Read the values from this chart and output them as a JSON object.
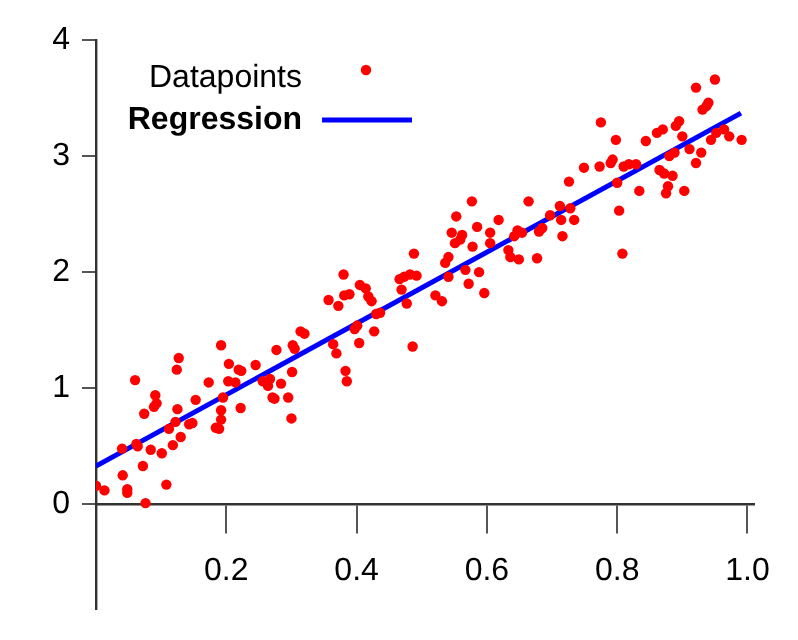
{
  "chart_data": {
    "type": "scatter",
    "xlim": [
      0,
      1.01
    ],
    "ylim": [
      -0.9,
      4
    ],
    "xticks": [
      0.2,
      0.4,
      0.6,
      0.8,
      {
        "value": 1,
        "label": "1.0"
      }
    ],
    "yticks": [
      0,
      1,
      2,
      3,
      4
    ],
    "grid": false,
    "legend": "top left",
    "series": [
      {
        "name": "Datapoints",
        "type": "scatter",
        "marker": "circle",
        "color": "#ff0000",
        "x": [
          0.0,
          0.013,
          0.041,
          0.048,
          0.048,
          0.04,
          0.062,
          0.064,
          0.06,
          0.074,
          0.072,
          0.076,
          0.084,
          0.091,
          0.089,
          0.093,
          0.101,
          0.108,
          0.112,
          0.118,
          0.122,
          0.125,
          0.127,
          0.124,
          0.13,
          0.143,
          0.148,
          0.153,
          0.173,
          0.184,
          0.189,
          0.192,
          0.192,
          0.192,
          0.195,
          0.203,
          0.204,
          0.214,
          0.219,
          0.223,
          0.222,
          0.245,
          0.256,
          0.264,
          0.267,
          0.271,
          0.274,
          0.277,
          0.284,
          0.295,
          0.3,
          0.301,
          0.305,
          0.302,
          0.314,
          0.32,
          0.357,
          0.364,
          0.369,
          0.372,
          0.38,
          0.381,
          0.383,
          0.385,
          0.389,
          0.397,
          0.401,
          0.404,
          0.405,
          0.414,
          0.418,
          0.423,
          0.427,
          0.43,
          0.436,
          0.466,
          0.469,
          0.473,
          0.477,
          0.482,
          0.488,
          0.486,
          0.492,
          0.521,
          0.531,
          0.536,
          0.541,
          0.546,
          0.541,
          0.553,
          0.551,
          0.559,
          0.562,
          0.567,
          0.572,
          0.577,
          0.578,
          0.585,
          0.588,
          0.596,
          0.605,
          0.605,
          0.618,
          0.633,
          0.636,
          0.642,
          0.647,
          0.649,
          0.654,
          0.664,
          0.677,
          0.68,
          0.685,
          0.697,
          0.712,
          0.714,
          0.716,
          0.726,
          0.728,
          0.734,
          0.749,
          0.773,
          0.775,
          0.79,
          0.793,
          0.798,
          0.8,
          0.803,
          0.808,
          0.81,
          0.818,
          0.829,
          0.834,
          0.844,
          0.861,
          0.865,
          0.87,
          0.872,
          0.875,
          0.878,
          0.88,
          0.885,
          0.888,
          0.89,
          0.895,
          0.9,
          0.903,
          0.911,
          0.921,
          0.921,
          0.929,
          0.931,
          0.937,
          0.94,
          0.944,
          0.95,
          0.952,
          0.964,
          0.972,
          0.991
        ],
        "values": [
          0.16,
          0.12,
          0.25,
          0.13,
          0.1,
          0.48,
          0.52,
          0.5,
          1.07,
          0.78,
          0.33,
          0.01,
          0.47,
          0.94,
          0.84,
          0.87,
          0.44,
          0.17,
          0.65,
          0.51,
          0.71,
          0.82,
          1.26,
          1.16,
          0.58,
          0.69,
          0.7,
          0.9,
          1.05,
          0.66,
          0.65,
          0.81,
          0.73,
          1.37,
          0.92,
          1.06,
          1.21,
          1.05,
          1.16,
          1.15,
          0.83,
          1.2,
          1.06,
          1.02,
          1.08,
          0.92,
          0.91,
          1.33,
          1.04,
          0.92,
          0.74,
          1.14,
          1.34,
          1.37,
          1.49,
          1.47,
          1.76,
          1.38,
          1.3,
          1.71,
          1.98,
          1.8,
          1.15,
          1.06,
          1.81,
          1.51,
          1.54,
          1.39,
          1.89,
          1.86,
          1.79,
          1.75,
          1.49,
          1.64,
          1.65,
          1.94,
          1.85,
          1.96,
          1.73,
          1.98,
          2.16,
          1.36,
          1.97,
          1.8,
          1.75,
          2.08,
          2.13,
          2.34,
          1.96,
          2.48,
          2.25,
          2.28,
          2.32,
          2.02,
          1.9,
          2.61,
          2.22,
          2.39,
          2.0,
          1.82,
          2.34,
          2.25,
          2.45,
          2.19,
          2.13,
          2.31,
          2.36,
          2.11,
          2.34,
          2.61,
          2.12,
          2.35,
          2.38,
          2.49,
          2.57,
          2.45,
          2.31,
          2.78,
          2.55,
          2.45,
          2.9,
          2.91,
          3.29,
          2.94,
          2.97,
          3.14,
          2.77,
          2.53,
          2.16,
          2.91,
          2.93,
          2.93,
          2.7,
          3.13,
          3.2,
          2.88,
          3.23,
          2.85,
          2.68,
          2.74,
          3.0,
          2.83,
          3.03,
          3.26,
          3.3,
          3.17,
          2.7,
          3.06,
          3.59,
          2.94,
          3.03,
          3.4,
          3.43,
          3.46,
          3.14,
          3.66,
          3.2,
          3.23,
          3.17,
          3.14
        ]
      },
      {
        "name": "Regression",
        "type": "line",
        "marker": "none",
        "line_style": "solid",
        "color": "#0000ff",
        "x": [
          0,
          0.99
        ],
        "values": [
          0.33,
          3.37
        ]
      }
    ]
  }
}
